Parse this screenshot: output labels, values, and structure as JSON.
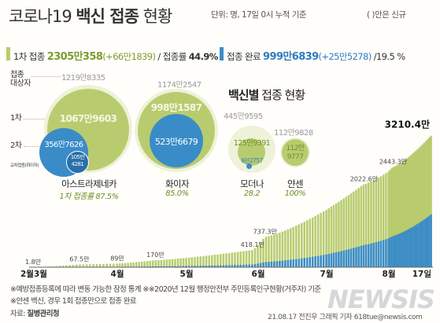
{
  "header": {
    "title_part1": "코로나19 ",
    "title_bold": "백신 접종",
    "title_part2": " 현황",
    "unit": "단위: 명, 17일 0시 누적 기준",
    "note": "( )안은 신규"
  },
  "stats": {
    "first_label": "1차 접종",
    "first_total": "2305만358",
    "first_new": "(+66만1839)",
    "first_rate_label": "/ 접종률",
    "first_rate": "44.9%",
    "done_label": "접종 완료",
    "done_total": "999만6839",
    "done_new": "(+25만5278)",
    "done_rate": "/19.5 %"
  },
  "row_labels": {
    "target": [
      "접종",
      "대상자"
    ],
    "first": "1차",
    "second": "2차",
    "cross": "교차접종(화이자)"
  },
  "subhead_bold": "백신별",
  "subhead_rest": " 접종 현황",
  "vaccines": [
    {
      "name": "아스트라제네카",
      "target": "1219만8335",
      "first": "1067만9603",
      "second": "356만7626",
      "cross": [
        "105만",
        "4281"
      ],
      "rate": "1차 접종률 87.5%"
    },
    {
      "name": "화이자",
      "target": "1174만2547",
      "first": "998만1587",
      "second": "523만6679",
      "rate": "85.0%"
    },
    {
      "name": "모더나",
      "target": "445만9595",
      "first": "125만9391",
      "second": "6만2757",
      "rate": "28.2"
    },
    {
      "name": "얀센",
      "target": "112만9828",
      "first": [
        "112만",
        "9777"
      ],
      "rate": "100%"
    }
  ],
  "colors": {
    "first_dose": "#b8cc6f",
    "second_dose": "#3a8cc8",
    "target_circle": "#eef2d8",
    "green_text": "#7e9b2e",
    "blue_text": "#2d7dbf"
  },
  "chart_data": {
    "type": "area",
    "title": "",
    "xlabel": "",
    "ylabel": "",
    "categories": [
      "2월3월",
      "4월",
      "5월",
      "6월",
      "7월",
      "8월",
      "17일"
    ],
    "series": [
      {
        "name": "1차",
        "color": "#b8cc6f"
      },
      {
        "name": "접종 완료",
        "color": "#3a8cc8"
      }
    ],
    "annotations": [
      {
        "label": "1.8만",
        "month": 0.0,
        "value": 1.8
      },
      {
        "label": "67.5만",
        "month": 0.55,
        "value": 67.5
      },
      {
        "label": "89만",
        "month": 1.0,
        "value": 89
      },
      {
        "label": "170만",
        "month": 1.55,
        "value": 170
      },
      {
        "label": "418.1만",
        "month": 2.92,
        "value": 418.1
      },
      {
        "label": "737.3만",
        "month": 3.1,
        "value": 737.3
      },
      {
        "label": "2022.6만",
        "month": 4.6,
        "value": 2022.6
      },
      {
        "label": "2443.3만",
        "month": 5.1,
        "value": 2443.3
      },
      {
        "label": "3210.4만",
        "month": 6.0,
        "value": 3210.4
      }
    ],
    "ylim": [
      0,
      3300
    ]
  },
  "footer": {
    "note1": "※예방접종등록에 따라 변동 가능한 잠정 통계 ※※2020년 12월 행정안전부 주민등록인구현황(거주자) 기준",
    "note2": "※얀센 백신, 경우 1회 접종만으로 접종 완료",
    "source_label": "자료:",
    "source": "질병관리청",
    "credit": "21.08.17 전진우 그래픽 기자 618tue@newsis.com",
    "logo": "NEWSIS"
  }
}
